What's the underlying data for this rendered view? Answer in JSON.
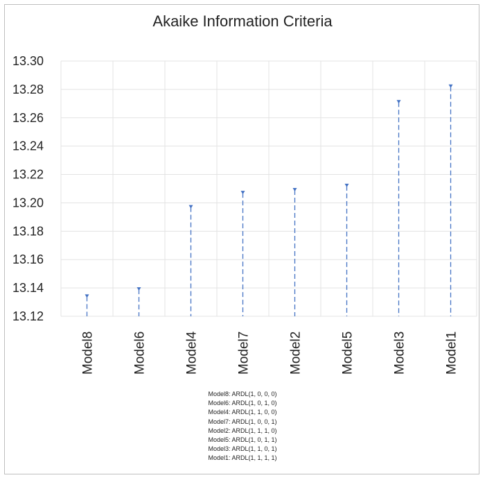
{
  "chart_data": {
    "type": "scatter",
    "title": "Akaike Information Criteria",
    "categories": [
      "Model8",
      "Model6",
      "Model4",
      "Model7",
      "Model2",
      "Model5",
      "Model3",
      "Model1"
    ],
    "values": [
      13.134,
      13.139,
      13.197,
      13.207,
      13.209,
      13.212,
      13.271,
      13.282
    ],
    "ylim": [
      13.12,
      13.3
    ],
    "yticks": [
      "13.12",
      "13.14",
      "13.16",
      "13.18",
      "13.20",
      "13.22",
      "13.24",
      "13.26",
      "13.28",
      "13.30"
    ],
    "ytick_values": [
      13.12,
      13.14,
      13.16,
      13.18,
      13.2,
      13.22,
      13.24,
      13.26,
      13.28,
      13.3
    ],
    "grid": true,
    "marker_color": "#4472c4",
    "drop_lines": "dashed"
  },
  "notes": [
    "Model8: ARDL(1, 0, 0, 0)",
    "Model6: ARDL(1, 0, 1, 0)",
    "Model4: ARDL(1, 1, 0, 0)",
    "Model7: ARDL(1, 0, 0, 1)",
    "Model2: ARDL(1, 1, 1, 0)",
    "Model5: ARDL(1, 0, 1, 1)",
    "Model3: ARDL(1, 1, 0, 1)",
    "Model1: ARDL(1, 1, 1, 1)"
  ]
}
